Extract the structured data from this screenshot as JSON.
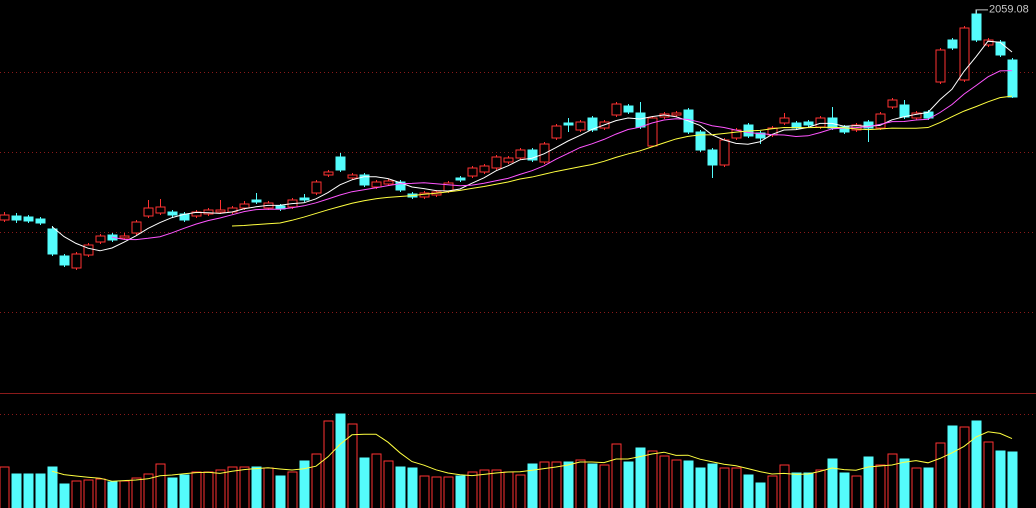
{
  "chart_data": {
    "type": "candlestick",
    "max_label": "2059.08",
    "open": [
      1954,
      1956,
      1955.5,
      1954.5,
      1949.5,
      1936,
      1930,
      1936.5,
      1943,
      1946.5,
      1945,
      1947.5,
      1956,
      1957.5,
      1958,
      1957,
      1956,
      1957,
      1958,
      1958,
      1960,
      1964,
      1960,
      1961,
      1960.5,
      1965,
      1967.5,
      1976.5,
      1985.5,
      1975,
      1976.5,
      1970.5,
      1972,
      1973,
      1967,
      1965.5,
      1966.5,
      1968.5,
      1975,
      1976,
      1978,
      1980,
      1983,
      1985,
      1989,
      1983,
      1995,
      2002.5,
      1999,
      2005,
      2000,
      2006.5,
      2011,
      2007.5,
      1991,
      2005.5,
      2006.5,
      2009,
      1998,
      1989,
      1981.5,
      1995,
      2001.5,
      1997.5,
      1996.5,
      2002.5,
      2002.5,
      2003,
      2000.5,
      2005,
      2000.5,
      1999,
      2003,
      2000,
      2010.5,
      2011.5,
      2005,
      2008,
      2023,
      2044,
      2024,
      2057,
      2041.5,
      2043,
      2034
    ],
    "close": [
      1956.5,
      1954,
      1953.5,
      1952.5,
      1937,
      1931.5,
      1937,
      1941.5,
      1946,
      1944,
      1946,
      1953,
      1960,
      1960.5,
      1956.5,
      1954,
      1958,
      1959,
      1959,
      1960,
      1962,
      1963,
      1962.5,
      1959.5,
      1964,
      1964,
      1973,
      1978,
      1979,
      1976.5,
      1971.5,
      1973,
      1973.5,
      1969,
      1965.5,
      1967.5,
      1968,
      1972.5,
      1974,
      1980,
      1981,
      1985.5,
      1985,
      1989,
      1984,
      1992,
      2001,
      2001.5,
      2003,
      1999,
      2003,
      2012,
      2008,
      2000.5,
      2005,
      2007,
      2007.5,
      1998,
      1989,
      1981.5,
      1994,
      1999,
      1996,
      1995,
      2000,
      2005,
      2000,
      2001.5,
      2005,
      2000,
      1998,
      2001.5,
      2000,
      2007,
      2014,
      2005.5,
      2007.5,
      2005,
      2039,
      2040,
      2050,
      2044,
      2044,
      2036.5,
      2015.5
    ],
    "high": [
      1958,
      1957.5,
      1956.5,
      1955.5,
      1951,
      1937,
      1938,
      1942.5,
      1947,
      1947.5,
      1947.5,
      1954,
      1964,
      1964.5,
      1959,
      1958,
      1959,
      1960,
      1964,
      1961,
      1963.5,
      1967.5,
      1963.5,
      1962,
      1965,
      1967,
      1974,
      1979,
      1987.5,
      1977.5,
      1977.5,
      1974,
      1974.5,
      1974,
      1968,
      1968.5,
      1969,
      1973.5,
      1976,
      1981,
      1982,
      1986.5,
      1986,
      1990,
      1990,
      1993,
      2002,
      2005,
      2004,
      2006,
      2004,
      2013,
      2012,
      2013,
      2006,
      2008,
      2008.5,
      2010,
      1999,
      1990,
      1995,
      2000,
      2002.5,
      1998.5,
      2001,
      2007.5,
      2003.5,
      2004,
      2006,
      2010.5,
      2001.5,
      2002.5,
      2004,
      2008,
      2015,
      2014,
      2008.5,
      2009,
      2040,
      2045,
      2051,
      2059.08,
      2045,
      2044,
      2035
    ],
    "low": [
      1953,
      1952.5,
      1952.5,
      1951.5,
      1936,
      1930.5,
      1929,
      1935.5,
      1942,
      1943,
      1944,
      1946.5,
      1955,
      1956.5,
      1955.5,
      1953,
      1955,
      1956,
      1957,
      1957,
      1959,
      1962,
      1959,
      1958.5,
      1959.5,
      1963,
      1966.5,
      1975.5,
      1978,
      1974,
      1970.5,
      1969.5,
      1971,
      1968,
      1964.5,
      1964.5,
      1965.5,
      1967.5,
      1973,
      1975,
      1977,
      1979,
      1982,
      1984,
      1983,
      1982,
      1994,
      1998,
      1998,
      1998,
      1999,
      2005.5,
      2007,
      1999.5,
      1990.5,
      2004.5,
      2005.5,
      1997,
      1988,
      1975,
      1980.5,
      1994,
      1995,
      1992,
      1995.5,
      2001.5,
      1999,
      2000.5,
      1999.5,
      1999,
      1997,
      1998,
      1993,
      1999,
      2009.5,
      2004.5,
      2004,
      2004,
      2022,
      2039,
      2023,
      2043,
      2040.5,
      2035.5,
      2015
    ],
    "volume": [
      41,
      34,
      34,
      34,
      41,
      24,
      27,
      28,
      29,
      26,
      27,
      30,
      34,
      44,
      30,
      33,
      36,
      36,
      38,
      41,
      41,
      41,
      40,
      32,
      36,
      47,
      54,
      87,
      94,
      84,
      50,
      54,
      47,
      41,
      40,
      32,
      31,
      31,
      32,
      36,
      38,
      38,
      36,
      33,
      44,
      46,
      46,
      46,
      48,
      44,
      43,
      64,
      46,
      60,
      57,
      52,
      48,
      47,
      40,
      44,
      40,
      40,
      33,
      25,
      32,
      43,
      35,
      35,
      38,
      49,
      35,
      32,
      51,
      43,
      54,
      49,
      40,
      40,
      65,
      82,
      81,
      87,
      66,
      57,
      56
    ],
    "ylim": [
      1869,
      2064
    ],
    "volume_ylim": [
      0,
      113
    ],
    "up_color": "#ff3232",
    "down_color": "#54fcfc",
    "ma": [
      {
        "period": 5,
        "color": "#ffffff"
      },
      {
        "period": 10,
        "color": "#ff55ff"
      },
      {
        "period": 20,
        "color": "#ffff40"
      }
    ],
    "volume_ma": {
      "period": 5,
      "color": "#ffff40"
    }
  }
}
